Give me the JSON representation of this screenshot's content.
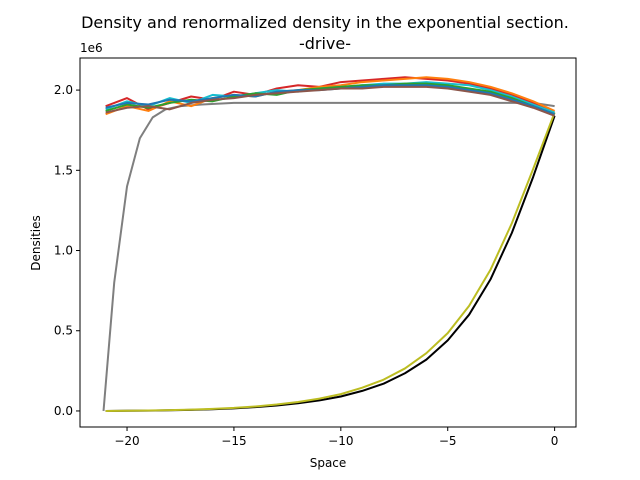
{
  "chart_data": {
    "type": "line",
    "title": "Density and renormalized density in the exponential section.",
    "subtitle": "-drive-",
    "xlabel": "Space",
    "ylabel": "Densities",
    "offset_text": "1e6",
    "xlim": [
      -22.2,
      1.0
    ],
    "ylim": [
      -100000,
      2200000
    ],
    "x_ticks": [
      -20,
      -15,
      -10,
      -5,
      0
    ],
    "x_tick_labels": [
      "−20",
      "−15",
      "−10",
      "−5",
      "0"
    ],
    "y_ticks": [
      0,
      500000,
      1000000,
      1500000,
      2000000
    ],
    "y_tick_labels": [
      "0.0",
      "0.5",
      "1.0",
      "1.5",
      "2.0"
    ],
    "grid": false,
    "legend": "none",
    "series": [
      {
        "group": "density",
        "color": "#000000",
        "x": [
          -21.0,
          -20.0,
          -19.0,
          -18.0,
          -17.0,
          -16.0,
          -15.0,
          -14.0,
          -13.0,
          -12.0,
          -11.0,
          -10.0,
          -9.0,
          -8.0,
          -7.0,
          -6.0,
          -5.0,
          -4.0,
          -3.0,
          -2.0,
          -1.0,
          0.0
        ],
        "y": [
          0,
          1000,
          2000,
          4000,
          7000,
          11000,
          16000,
          24000,
          34000,
          48000,
          66000,
          90000,
          125000,
          170000,
          235000,
          320000,
          440000,
          600000,
          820000,
          1110000,
          1460000,
          1840000
        ]
      },
      {
        "group": "density",
        "color": "#bcbd22",
        "x": [
          -21.0,
          -20.0,
          -19.0,
          -18.0,
          -17.0,
          -16.0,
          -15.0,
          -14.0,
          -13.0,
          -12.0,
          -11.0,
          -10.0,
          -9.0,
          -8.0,
          -7.0,
          -6.0,
          -5.0,
          -4.0,
          -3.0,
          -2.0,
          -1.0,
          0.0
        ],
        "y": [
          0,
          1500,
          3000,
          5000,
          8000,
          13000,
          19000,
          28000,
          40000,
          56000,
          77000,
          105000,
          145000,
          195000,
          265000,
          360000,
          485000,
          655000,
          880000,
          1170000,
          1510000,
          1860000
        ]
      },
      {
        "group": "renormalized",
        "color": "#7f7f7f",
        "x": [
          -21.1,
          -20.6,
          -20.0,
          -19.4,
          -18.8,
          -18.2,
          -17.5,
          -16.5,
          -15.0,
          -12.0,
          -9.0,
          -6.0,
          -3.0,
          -1.0,
          0.0
        ],
        "y": [
          0,
          800000,
          1400000,
          1700000,
          1830000,
          1880000,
          1900000,
          1910000,
          1920000,
          1920000,
          1920000,
          1920000,
          1920000,
          1920000,
          1900000
        ]
      },
      {
        "group": "renormalized",
        "color": "#d62728",
        "x": [
          -21.0,
          -20.0,
          -19.0,
          -18.0,
          -17.0,
          -16.0,
          -15.0,
          -14.0,
          -13.0,
          -12.0,
          -11.0,
          -10.0,
          -9.0,
          -8.0,
          -7.0,
          -6.0,
          -5.0,
          -4.0,
          -3.0,
          -2.0,
          -1.0,
          0.0
        ],
        "y": [
          1900000,
          1950000,
          1880000,
          1920000,
          1960000,
          1940000,
          1990000,
          1970000,
          2010000,
          2030000,
          2020000,
          2050000,
          2060000,
          2070000,
          2080000,
          2070000,
          2060000,
          2040000,
          2010000,
          1970000,
          1920000,
          1860000
        ]
      },
      {
        "group": "renormalized",
        "color": "#ff7f0e",
        "x": [
          -21.0,
          -20.0,
          -19.0,
          -18.0,
          -17.0,
          -16.0,
          -15.0,
          -14.0,
          -13.0,
          -12.0,
          -11.0,
          -10.0,
          -9.0,
          -8.0,
          -7.0,
          -6.0,
          -5.0,
          -4.0,
          -3.0,
          -2.0,
          -1.0,
          0.0
        ],
        "y": [
          1850000,
          1900000,
          1870000,
          1930000,
          1900000,
          1950000,
          1970000,
          1960000,
          1990000,
          2000000,
          2020000,
          2030000,
          2050000,
          2060000,
          2070000,
          2080000,
          2070000,
          2050000,
          2020000,
          1980000,
          1930000,
          1870000
        ]
      },
      {
        "group": "renormalized",
        "color": "#17becf",
        "x": [
          -21.0,
          -20.0,
          -19.0,
          -18.0,
          -17.0,
          -16.0,
          -15.0,
          -14.0,
          -13.0,
          -12.0,
          -11.0,
          -10.0,
          -9.0,
          -8.0,
          -7.0,
          -6.0,
          -5.0,
          -4.0,
          -3.0,
          -2.0,
          -1.0,
          0.0
        ],
        "y": [
          1880000,
          1930000,
          1900000,
          1950000,
          1920000,
          1970000,
          1960000,
          1980000,
          2000000,
          1990000,
          2010000,
          2020000,
          2030000,
          2040000,
          2040000,
          2050000,
          2040000,
          2030000,
          2000000,
          1960000,
          1910000,
          1860000
        ]
      },
      {
        "group": "renormalized",
        "color": "#2ca02c",
        "x": [
          -21.0,
          -20.0,
          -19.0,
          -18.0,
          -17.0,
          -16.0,
          -15.0,
          -14.0,
          -13.0,
          -12.0,
          -11.0,
          -10.0,
          -9.0,
          -8.0,
          -7.0,
          -6.0,
          -5.0,
          -4.0,
          -3.0,
          -2.0,
          -1.0,
          0.0
        ],
        "y": [
          1870000,
          1910000,
          1890000,
          1920000,
          1940000,
          1930000,
          1960000,
          1980000,
          1970000,
          2000000,
          2010000,
          2020000,
          2030000,
          2030000,
          2040000,
          2040000,
          2030000,
          2010000,
          1990000,
          1950000,
          1900000,
          1850000
        ]
      },
      {
        "group": "renormalized",
        "color": "#1f77b4",
        "x": [
          -21.0,
          -20.0,
          -19.0,
          -18.0,
          -17.0,
          -16.0,
          -15.0,
          -14.0,
          -13.0,
          -12.0,
          -11.0,
          -10.0,
          -9.0,
          -8.0,
          -7.0,
          -6.0,
          -5.0,
          -4.0,
          -3.0,
          -2.0,
          -1.0,
          0.0
        ],
        "y": [
          1890000,
          1920000,
          1910000,
          1940000,
          1930000,
          1950000,
          1970000,
          1960000,
          1990000,
          2000000,
          2000000,
          2010000,
          2020000,
          2030000,
          2030000,
          2030000,
          2020000,
          2000000,
          1980000,
          1940000,
          1900000,
          1850000
        ]
      },
      {
        "group": "renormalized",
        "color": "#8c564b",
        "x": [
          -21.0,
          -20.0,
          -19.0,
          -18.0,
          -17.0,
          -16.0,
          -15.0,
          -14.0,
          -13.0,
          -12.0,
          -11.0,
          -10.0,
          -9.0,
          -8.0,
          -7.0,
          -6.0,
          -5.0,
          -4.0,
          -3.0,
          -2.0,
          -1.0,
          0.0
        ],
        "y": [
          1860000,
          1890000,
          1900000,
          1880000,
          1920000,
          1940000,
          1950000,
          1970000,
          1980000,
          1990000,
          2000000,
          2010000,
          2010000,
          2020000,
          2020000,
          2020000,
          2010000,
          1990000,
          1970000,
          1930000,
          1890000,
          1840000
        ]
      }
    ]
  }
}
